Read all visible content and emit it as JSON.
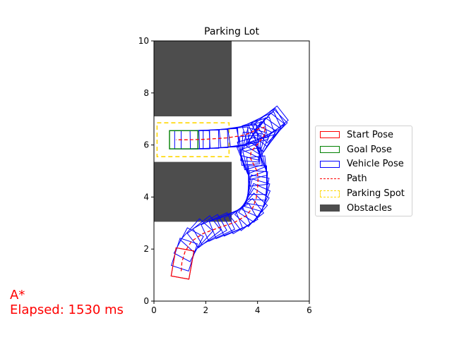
{
  "chart_data": {
    "type": "scatter",
    "title": "Parking Lot",
    "xlabel": "",
    "ylabel": "",
    "xlim": [
      0,
      6
    ],
    "ylim": [
      0,
      10
    ],
    "xticks": [
      "0",
      "2",
      "4",
      "6"
    ],
    "yticks": [
      "0",
      "2",
      "4",
      "6",
      "8",
      "10"
    ],
    "grid": false,
    "legend_position": "right, outside plot",
    "vehicle": {
      "length": 1.1,
      "width": 0.7
    },
    "obstacles": [
      {
        "x0": 0,
        "y0": 7.1,
        "x1": 3,
        "y1": 10
      },
      {
        "x0": 0,
        "y0": 3.05,
        "x1": 3,
        "y1": 5.35
      }
    ],
    "parking_spot": {
      "x0": 0.12,
      "y0": 5.55,
      "x1": 2.9,
      "y1": 6.85
    },
    "start_pose": {
      "x": 1.05,
      "y": 1.15,
      "theta_deg": 80
    },
    "goal_pose": {
      "x": 0.85,
      "y": 6.2,
      "theta_deg": 0
    },
    "path": {
      "x": [
        1.05,
        1.08,
        1.2,
        1.45,
        1.9,
        2.5,
        3.1,
        3.55,
        3.82,
        3.95,
        4.0,
        4.02,
        3.98,
        3.85,
        3.72,
        3.75,
        3.98,
        4.25,
        4.3,
        4.0,
        3.5,
        2.8,
        2.0,
        1.3,
        0.85
      ],
      "y": [
        1.15,
        1.5,
        1.9,
        2.3,
        2.6,
        2.82,
        3.02,
        3.28,
        3.6,
        3.95,
        4.35,
        4.7,
        5.0,
        5.25,
        5.5,
        5.75,
        6.0,
        6.35,
        6.7,
        6.6,
        6.38,
        6.27,
        6.22,
        6.2,
        6.2
      ]
    },
    "vehicle_poses": [
      {
        "x": 1.05,
        "y": 1.15,
        "theta": 80
      },
      {
        "x": 1.08,
        "y": 1.5,
        "theta": 72
      },
      {
        "x": 1.2,
        "y": 1.9,
        "theta": 62
      },
      {
        "x": 1.45,
        "y": 2.3,
        "theta": 48
      },
      {
        "x": 1.7,
        "y": 2.48,
        "theta": 38
      },
      {
        "x": 1.9,
        "y": 2.6,
        "theta": 30
      },
      {
        "x": 2.2,
        "y": 2.72,
        "theta": 25
      },
      {
        "x": 2.5,
        "y": 2.82,
        "theta": 22
      },
      {
        "x": 2.8,
        "y": 2.92,
        "theta": 24
      },
      {
        "x": 3.1,
        "y": 3.02,
        "theta": 30
      },
      {
        "x": 3.35,
        "y": 3.14,
        "theta": 38
      },
      {
        "x": 3.55,
        "y": 3.28,
        "theta": 48
      },
      {
        "x": 3.7,
        "y": 3.43,
        "theta": 58
      },
      {
        "x": 3.82,
        "y": 3.6,
        "theta": 66
      },
      {
        "x": 3.9,
        "y": 3.78,
        "theta": 74
      },
      {
        "x": 3.95,
        "y": 3.95,
        "theta": 80
      },
      {
        "x": 3.98,
        "y": 4.15,
        "theta": 86
      },
      {
        "x": 4.0,
        "y": 4.35,
        "theta": 90
      },
      {
        "x": 4.02,
        "y": 4.7,
        "theta": 96
      },
      {
        "x": 3.98,
        "y": 5.0,
        "theta": 104
      },
      {
        "x": 3.92,
        "y": 5.12,
        "theta": 110
      },
      {
        "x": 3.85,
        "y": 5.25,
        "theta": 112
      },
      {
        "x": 3.78,
        "y": 5.38,
        "theta": 105
      },
      {
        "x": 3.72,
        "y": 5.5,
        "theta": 95
      },
      {
        "x": 3.72,
        "y": 5.62,
        "theta": 85
      },
      {
        "x": 3.75,
        "y": 5.75,
        "theta": 75
      },
      {
        "x": 3.85,
        "y": 5.88,
        "theta": 65
      },
      {
        "x": 3.98,
        "y": 6.0,
        "theta": 58
      },
      {
        "x": 4.1,
        "y": 6.15,
        "theta": 55
      },
      {
        "x": 4.25,
        "y": 6.35,
        "theta": 52
      },
      {
        "x": 4.3,
        "y": 6.5,
        "theta": 45
      },
      {
        "x": 4.3,
        "y": 6.7,
        "theta": 38
      },
      {
        "x": 4.15,
        "y": 6.65,
        "theta": 32
      },
      {
        "x": 4.0,
        "y": 6.6,
        "theta": 25
      },
      {
        "x": 3.75,
        "y": 6.48,
        "theta": 18
      },
      {
        "x": 3.5,
        "y": 6.38,
        "theta": 12
      },
      {
        "x": 3.15,
        "y": 6.32,
        "theta": 8
      },
      {
        "x": 2.8,
        "y": 6.27,
        "theta": 5
      },
      {
        "x": 2.4,
        "y": 6.24,
        "theta": 3
      },
      {
        "x": 2.0,
        "y": 6.22,
        "theta": 2
      },
      {
        "x": 1.65,
        "y": 6.21,
        "theta": 1
      },
      {
        "x": 1.3,
        "y": 6.2,
        "theta": 0
      },
      {
        "x": 1.05,
        "y": 6.2,
        "theta": 0
      },
      {
        "x": 0.85,
        "y": 6.2,
        "theta": 0
      }
    ],
    "legend": [
      {
        "label": "Start Pose",
        "style": "outline",
        "color": "#ff0000"
      },
      {
        "label": "Goal Pose",
        "style": "outline",
        "color": "#008000"
      },
      {
        "label": "Vehicle Pose",
        "style": "outline",
        "color": "#0000ff"
      },
      {
        "label": "Path",
        "style": "dashed-line",
        "color": "#ff0000"
      },
      {
        "label": "Parking Spot",
        "style": "dashed-outline",
        "color": "#ffd700"
      },
      {
        "label": "Obstacles",
        "style": "fill",
        "color": "#4d4d4d"
      }
    ],
    "colors": {
      "obstacle": "#4d4d4d",
      "start": "#ff0000",
      "goal": "#008000",
      "vehicle": "#0000ff",
      "path": "#ff0000",
      "parking_spot": "#ffd700"
    }
  },
  "annotation": {
    "algorithm": "A*",
    "elapsed": "Elapsed: 1530 ms"
  }
}
